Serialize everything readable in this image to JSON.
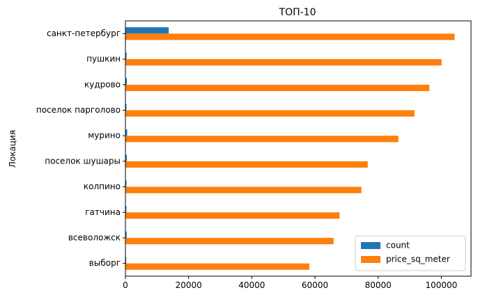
{
  "chart_data": {
    "type": "bar",
    "orientation": "horizontal",
    "title": "ТОП-10",
    "xlabel": "",
    "ylabel": "Локация",
    "categories": [
      "санкт-петербург",
      "пушкин",
      "кудрово",
      "поселок парголово",
      "мурино",
      "поселок шушары",
      "колпино",
      "гатчина",
      "всеволожск",
      "выборг"
    ],
    "series": [
      {
        "name": "count",
        "color": "#1f77b4",
        "values": [
          13700,
          370,
          470,
          320,
          560,
          440,
          340,
          310,
          400,
          240
        ]
      },
      {
        "name": "price_sq_meter",
        "color": "#ff7f0e",
        "values": [
          104200,
          100100,
          96200,
          91500,
          86400,
          76700,
          74700,
          67800,
          65900,
          58200
        ]
      }
    ],
    "xlim": [
      0,
      109400
    ],
    "xticks": [
      0,
      20000,
      40000,
      60000,
      80000,
      100000
    ],
    "grid": false,
    "legend_position": "lower right"
  }
}
